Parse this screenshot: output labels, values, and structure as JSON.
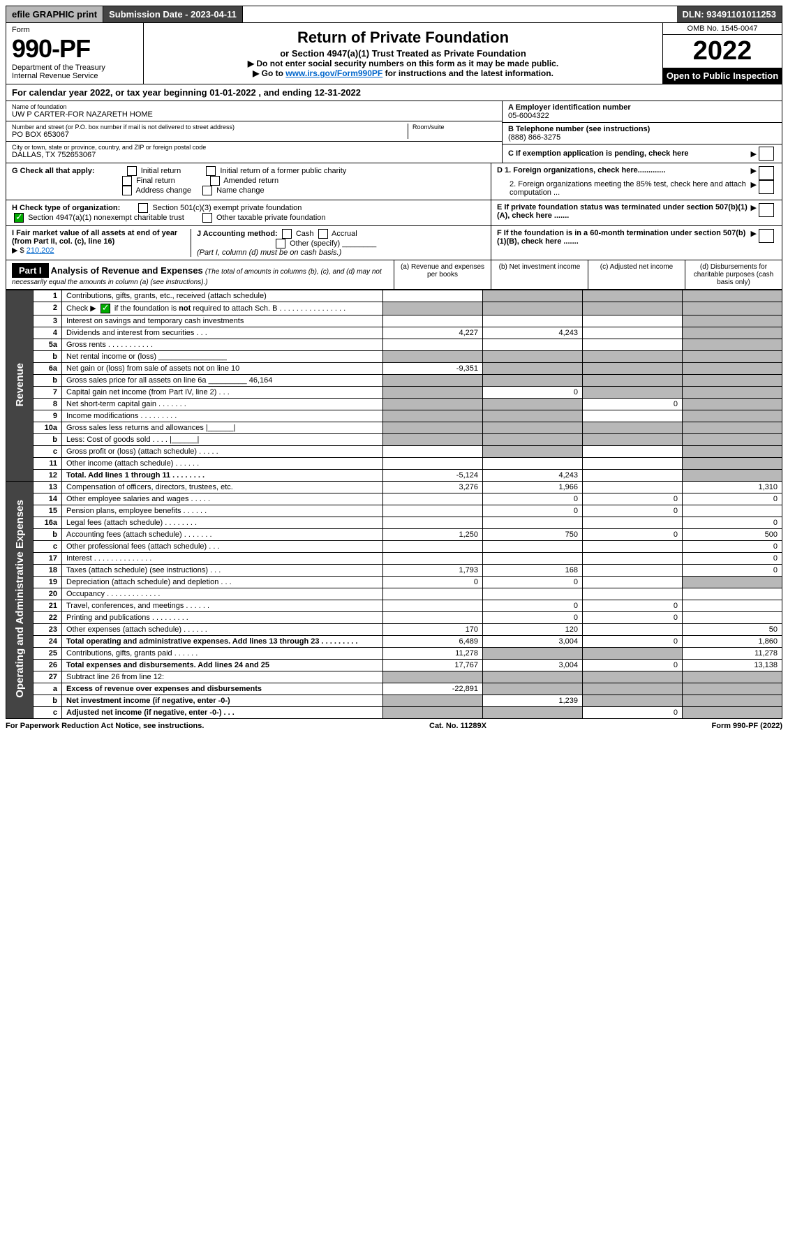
{
  "colors": {
    "header_dark": "#444444",
    "shaded": "#b8b8b8",
    "link": "#0066cc",
    "check_green": "#00aa00"
  },
  "topbar": {
    "efile": "efile GRAPHIC print",
    "submission_label": "Submission Date - 2023-04-11",
    "dln": "DLN: 93491101011253"
  },
  "header": {
    "form_label": "Form",
    "form_number": "990-PF",
    "dept": "Department of the Treasury",
    "irs": "Internal Revenue Service",
    "title": "Return of Private Foundation",
    "subtitle": "or Section 4947(a)(1) Trust Treated as Private Foundation",
    "instr1": "▶ Do not enter social security numbers on this form as it may be made public.",
    "instr2_pre": "▶ Go to ",
    "instr2_link": "www.irs.gov/Form990PF",
    "instr2_post": " for instructions and the latest information.",
    "omb": "OMB No. 1545-0047",
    "year": "2022",
    "open": "Open to Public Inspection"
  },
  "calendar": {
    "text_pre": "For calendar year 2022, or tax year beginning ",
    "begin": "01-01-2022",
    "mid": " , and ending ",
    "end": "12-31-2022"
  },
  "foundation": {
    "name_label": "Name of foundation",
    "name": "UW P CARTER-FOR NAZARETH HOME",
    "addr_label": "Number and street (or P.O. box number if mail is not delivered to street address)",
    "room_label": "Room/suite",
    "addr": "PO BOX 653067",
    "city_label": "City or town, state or province, country, and ZIP or foreign postal code",
    "city": "DALLAS, TX  752653067",
    "ein_label": "A Employer identification number",
    "ein": "05-6004322",
    "phone_label": "B Telephone number (see instructions)",
    "phone": "(888) 866-3275",
    "c_label": "C If exemption application is pending, check here",
    "d1": "D 1. Foreign organizations, check here.............",
    "d2": "2. Foreign organizations meeting the 85% test, check here and attach computation ...",
    "e": "E  If private foundation status was terminated under section 507(b)(1)(A), check here .......",
    "f": "F  If the foundation is in a 60-month termination under section 507(b)(1)(B), check here .......",
    "g_label": "G Check all that apply:",
    "g_opts": [
      "Initial return",
      "Initial return of a former public charity",
      "Final return",
      "Amended return",
      "Address change",
      "Name change"
    ],
    "h_label": "H Check type of organization:",
    "h_501": "Section 501(c)(3) exempt private foundation",
    "h_4947": "Section 4947(a)(1) nonexempt charitable trust",
    "h_other": "Other taxable private foundation",
    "i_label": "I Fair market value of all assets at end of year (from Part II, col. (c), line 16)",
    "i_value": "210,202",
    "j_label": "J Accounting method:",
    "j_cash": "Cash",
    "j_accrual": "Accrual",
    "j_other": "Other (specify)",
    "j_note": "(Part I, column (d) must be on cash basis.)"
  },
  "part1": {
    "label": "Part I",
    "title": "Analysis of Revenue and Expenses",
    "title_note": "(The total of amounts in columns (b), (c), and (d) may not necessarily equal the amounts in column (a) (see instructions).)",
    "col_a": "(a)  Revenue and expenses per books",
    "col_b": "(b)  Net investment income",
    "col_c": "(c)  Adjusted net income",
    "col_d": "(d)  Disbursements for charitable purposes (cash basis only)",
    "side_revenue": "Revenue",
    "side_expenses": "Operating and Administrative Expenses"
  },
  "rows": [
    {
      "n": "1",
      "desc": "Contributions, gifts, grants, etc., received (attach schedule)",
      "a": "",
      "b": "s",
      "c": "s",
      "d": "s"
    },
    {
      "n": "2",
      "desc": "Check ▶ ☑ if the foundation is not required to attach Sch. B    .  .  .  .  .  .  .  .  .  .  .  .  .  .  .  .",
      "a": "s",
      "b": "s",
      "c": "s",
      "d": "s",
      "check": true
    },
    {
      "n": "3",
      "desc": "Interest on savings and temporary cash investments",
      "a": "",
      "b": "",
      "c": "",
      "d": "s"
    },
    {
      "n": "4",
      "desc": "Dividends and interest from securities   .   .   .",
      "a": "4,227",
      "b": "4,243",
      "c": "",
      "d": "s"
    },
    {
      "n": "5a",
      "desc": "Gross rents   .   .   .   .   .   .   .   .   .   .   .",
      "a": "",
      "b": "",
      "c": "",
      "d": "s"
    },
    {
      "n": "b",
      "desc": "Net rental income or (loss)  ________________",
      "a": "s",
      "b": "s",
      "c": "s",
      "d": "s"
    },
    {
      "n": "6a",
      "desc": "Net gain or (loss) from sale of assets not on line 10",
      "a": "-9,351",
      "b": "s",
      "c": "s",
      "d": "s"
    },
    {
      "n": "b",
      "desc": "Gross sales price for all assets on line 6a _________ 46,164",
      "a": "s",
      "b": "s",
      "c": "s",
      "d": "s"
    },
    {
      "n": "7",
      "desc": "Capital gain net income (from Part IV, line 2)   .   .   .",
      "a": "s",
      "b": "0",
      "c": "s",
      "d": "s"
    },
    {
      "n": "8",
      "desc": "Net short-term capital gain  .   .   .   .   .   .   .",
      "a": "s",
      "b": "s",
      "c": "0",
      "d": "s"
    },
    {
      "n": "9",
      "desc": "Income modifications  .   .   .   .   .   .   .   .   .",
      "a": "s",
      "b": "s",
      "c": "",
      "d": "s"
    },
    {
      "n": "10a",
      "desc": "Gross sales less returns and allowances  |______|",
      "a": "s",
      "b": "s",
      "c": "s",
      "d": "s"
    },
    {
      "n": "b",
      "desc": "Less: Cost of goods sold   .   .   .   .   |______|",
      "a": "s",
      "b": "s",
      "c": "s",
      "d": "s"
    },
    {
      "n": "c",
      "desc": "Gross profit or (loss) (attach schedule)   .   .   .   .   .",
      "a": "",
      "b": "s",
      "c": "",
      "d": "s"
    },
    {
      "n": "11",
      "desc": "Other income (attach schedule)   .   .   .   .   .   .",
      "a": "",
      "b": "",
      "c": "",
      "d": "s"
    },
    {
      "n": "12",
      "desc": "Total. Add lines 1 through 11   .   .   .   .   .   .   .   .",
      "a": "-5,124",
      "b": "4,243",
      "c": "",
      "d": "s",
      "bold": true
    },
    {
      "n": "13",
      "desc": "Compensation of officers, directors, trustees, etc.",
      "a": "3,276",
      "b": "1,966",
      "c": "",
      "d": "1,310"
    },
    {
      "n": "14",
      "desc": "Other employee salaries and wages   .   .   .   .   .",
      "a": "",
      "b": "0",
      "c": "0",
      "d": "0"
    },
    {
      "n": "15",
      "desc": "Pension plans, employee benefits  .   .   .   .   .   .",
      "a": "",
      "b": "0",
      "c": "0",
      "d": ""
    },
    {
      "n": "16a",
      "desc": "Legal fees (attach schedule) .   .   .   .   .   .   .   .",
      "a": "",
      "b": "",
      "c": "",
      "d": "0"
    },
    {
      "n": "b",
      "desc": "Accounting fees (attach schedule) .   .   .   .   .   .   .",
      "a": "1,250",
      "b": "750",
      "c": "0",
      "d": "500"
    },
    {
      "n": "c",
      "desc": "Other professional fees (attach schedule)   .   .   .",
      "a": "",
      "b": "",
      "c": "",
      "d": "0"
    },
    {
      "n": "17",
      "desc": "Interest .   .   .   .   .   .   .   .   .   .   .   .   .   .",
      "a": "",
      "b": "",
      "c": "",
      "d": "0"
    },
    {
      "n": "18",
      "desc": "Taxes (attach schedule) (see instructions)   .   .   .",
      "a": "1,793",
      "b": "168",
      "c": "",
      "d": "0"
    },
    {
      "n": "19",
      "desc": "Depreciation (attach schedule) and depletion   .   .   .",
      "a": "0",
      "b": "0",
      "c": "",
      "d": "s"
    },
    {
      "n": "20",
      "desc": "Occupancy .   .   .   .   .   .   .   .   .   .   .   .   .",
      "a": "",
      "b": "",
      "c": "",
      "d": ""
    },
    {
      "n": "21",
      "desc": "Travel, conferences, and meetings .   .   .   .   .   .",
      "a": "",
      "b": "0",
      "c": "0",
      "d": ""
    },
    {
      "n": "22",
      "desc": "Printing and publications .   .   .   .   .   .   .   .   .",
      "a": "",
      "b": "0",
      "c": "0",
      "d": ""
    },
    {
      "n": "23",
      "desc": "Other expenses (attach schedule) .   .   .   .   .   .",
      "a": "170",
      "b": "120",
      "c": "",
      "d": "50"
    },
    {
      "n": "24",
      "desc": "Total operating and administrative expenses. Add lines 13 through 23   .   .   .   .   .   .   .   .   .",
      "a": "6,489",
      "b": "3,004",
      "c": "0",
      "d": "1,860",
      "bold": true
    },
    {
      "n": "25",
      "desc": "Contributions, gifts, grants paid   .   .   .   .   .   .",
      "a": "11,278",
      "b": "s",
      "c": "s",
      "d": "11,278"
    },
    {
      "n": "26",
      "desc": "Total expenses and disbursements. Add lines 24 and 25",
      "a": "17,767",
      "b": "3,004",
      "c": "0",
      "d": "13,138",
      "bold": true
    },
    {
      "n": "27",
      "desc": "Subtract line 26 from line 12:",
      "a": "s",
      "b": "s",
      "c": "s",
      "d": "s"
    },
    {
      "n": "a",
      "desc": "Excess of revenue over expenses and disbursements",
      "a": "-22,891",
      "b": "s",
      "c": "s",
      "d": "s",
      "bold": true
    },
    {
      "n": "b",
      "desc": "Net investment income (if negative, enter -0-)",
      "a": "s",
      "b": "1,239",
      "c": "s",
      "d": "s",
      "bold": true
    },
    {
      "n": "c",
      "desc": "Adjusted net income (if negative, enter -0-)  .   .   .",
      "a": "s",
      "b": "s",
      "c": "0",
      "d": "s",
      "bold": true
    }
  ],
  "footer": {
    "left": "For Paperwork Reduction Act Notice, see instructions.",
    "mid": "Cat. No. 11289X",
    "right": "Form 990-PF (2022)"
  }
}
